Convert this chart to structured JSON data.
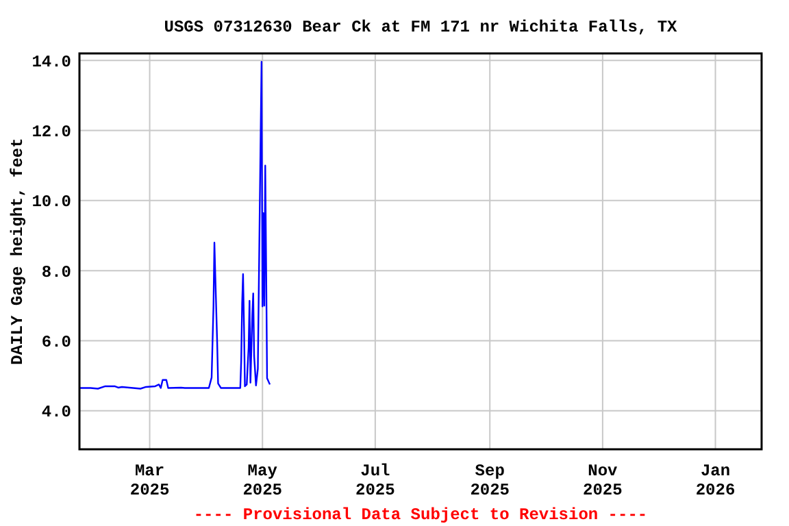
{
  "chart_data": {
    "type": "line",
    "title": "USGS 07312630 Bear Ck at FM 171 nr Wichita Falls, TX",
    "ylabel": "DAILY Gage height, feet",
    "annotations": [
      "---- Provisional Data Subject to Revision ----"
    ],
    "xlim": [
      "2025-01-22",
      "2026-01-26"
    ],
    "xticks": [
      {
        "value": "2025-03-01",
        "label": "Mar 2025"
      },
      {
        "value": "2025-05-01",
        "label": "May 2025"
      },
      {
        "value": "2025-07-01",
        "label": "Jul 2025"
      },
      {
        "value": "2025-09-01",
        "label": "Sep 2025"
      },
      {
        "value": "2025-11-01",
        "label": "Nov 2025"
      },
      {
        "value": "2026-01-01",
        "label": "Jan 2026"
      }
    ],
    "ylim": [
      2.9,
      14.2
    ],
    "yticks": [
      {
        "value": 4,
        "label": "4.0"
      },
      {
        "value": 6,
        "label": "6.0"
      },
      {
        "value": 8,
        "label": "8.0"
      },
      {
        "value": 10,
        "label": "10.0"
      },
      {
        "value": 12,
        "label": "12.0"
      },
      {
        "value": 14,
        "label": "14.0"
      }
    ],
    "grid": true,
    "marker": "none",
    "line_style": "solid",
    "series": [
      {
        "color": "#0000ff",
        "x": [
          "2025-01-22",
          "2025-01-28",
          "2025-02-01",
          "2025-02-05",
          "2025-02-10",
          "2025-02-12",
          "2025-02-14",
          "2025-02-24",
          "2025-02-27",
          "2025-03-04",
          "2025-03-06",
          "2025-03-07",
          "2025-03-08",
          "2025-03-10",
          "2025-03-11",
          "2025-03-18",
          "2025-03-20",
          "2025-04-02",
          "2025-04-03T12:00",
          "2025-04-04T12:00",
          "2025-04-05",
          "2025-04-05T12:00",
          "2025-04-06T12:00",
          "2025-04-07",
          "2025-04-08T12:00",
          "2025-04-19",
          "2025-04-19T12:00",
          "2025-04-20",
          "2025-04-20T12:00",
          "2025-04-21",
          "2025-04-21T12:00",
          "2025-04-22T12:00",
          "2025-04-23T12:00",
          "2025-04-24",
          "2025-04-24T12:00",
          "2025-04-25T12:00",
          "2025-04-26",
          "2025-04-26T12:00",
          "2025-04-27T12:00",
          "2025-04-28T12:00",
          "2025-04-29T12:00",
          "2025-04-30T12:00",
          "2025-05-01",
          "2025-05-01T12:00",
          "2025-05-02",
          "2025-05-02T12:00",
          "2025-05-03",
          "2025-05-03T12:00",
          "2025-05-05"
        ],
        "values": [
          4.65,
          4.65,
          4.63,
          4.7,
          4.7,
          4.66,
          4.68,
          4.63,
          4.68,
          4.7,
          4.75,
          4.65,
          4.88,
          4.88,
          4.65,
          4.66,
          4.65,
          4.65,
          4.95,
          6.98,
          8.8,
          7.83,
          5.95,
          4.78,
          4.65,
          4.65,
          5.43,
          7.05,
          7.9,
          6.45,
          4.7,
          4.75,
          5.8,
          7.14,
          4.8,
          6.72,
          7.35,
          5.56,
          4.72,
          5.2,
          9.64,
          13.96,
          6.98,
          9.64,
          7.0,
          11.0,
          8.1,
          4.93,
          4.75
        ]
      }
    ]
  }
}
